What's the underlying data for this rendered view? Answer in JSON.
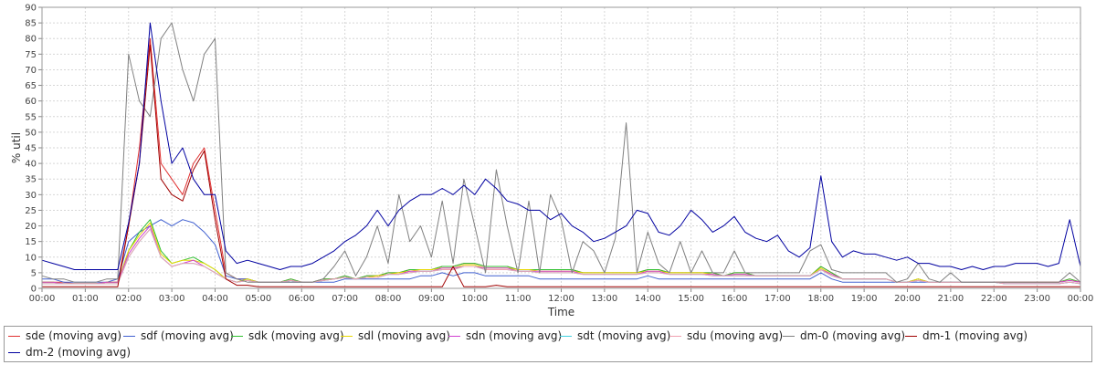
{
  "chart_data": {
    "type": "line",
    "xlabel": "Time",
    "ylabel": "% util",
    "ylim": [
      0,
      90
    ],
    "xlim": [
      "00:00",
      "24:00"
    ],
    "y_ticks": [
      0,
      5,
      10,
      15,
      20,
      25,
      30,
      35,
      40,
      45,
      50,
      55,
      60,
      65,
      70,
      75,
      80,
      85,
      90
    ],
    "x_ticks": [
      "00:00",
      "01:00",
      "02:00",
      "03:00",
      "04:00",
      "05:00",
      "06:00",
      "07:00",
      "08:00",
      "09:00",
      "10:00",
      "11:00",
      "12:00",
      "13:00",
      "14:00",
      "15:00",
      "16:00",
      "17:00",
      "18:00",
      "19:00",
      "20:00",
      "21:00",
      "22:00",
      "23:00",
      "00:00"
    ],
    "grid": true,
    "legend_position": "bottom",
    "x": [
      "00:00",
      "00:15",
      "00:30",
      "00:45",
      "01:00",
      "01:15",
      "01:30",
      "01:45",
      "02:00",
      "02:15",
      "02:30",
      "02:45",
      "03:00",
      "03:15",
      "03:30",
      "03:45",
      "04:00",
      "04:15",
      "04:30",
      "04:45",
      "05:00",
      "05:15",
      "05:30",
      "05:45",
      "06:00",
      "06:15",
      "06:30",
      "06:45",
      "07:00",
      "07:15",
      "07:30",
      "07:45",
      "08:00",
      "08:15",
      "08:30",
      "08:45",
      "09:00",
      "09:15",
      "09:30",
      "09:45",
      "10:00",
      "10:15",
      "10:30",
      "10:45",
      "11:00",
      "11:15",
      "11:30",
      "11:45",
      "12:00",
      "12:15",
      "12:30",
      "12:45",
      "13:00",
      "13:15",
      "13:30",
      "13:45",
      "14:00",
      "14:15",
      "14:30",
      "14:45",
      "15:00",
      "15:15",
      "15:30",
      "15:45",
      "16:00",
      "16:15",
      "16:30",
      "16:45",
      "17:00",
      "17:15",
      "17:30",
      "17:45",
      "18:00",
      "18:15",
      "18:30",
      "18:45",
      "19:00",
      "19:15",
      "19:30",
      "19:45",
      "20:00",
      "20:15",
      "20:30",
      "20:45",
      "21:00",
      "21:15",
      "21:30",
      "21:45",
      "22:00",
      "22:15",
      "22:30",
      "22:45",
      "23:00",
      "23:15",
      "23:30",
      "23:45",
      "24:00"
    ],
    "series": [
      {
        "name": "sde (moving avg)",
        "color": "#e03030",
        "values": [
          2,
          2,
          2,
          1.5,
          1.5,
          1.5,
          2,
          2,
          20,
          45,
          80,
          40,
          35,
          30,
          40,
          45,
          25,
          5,
          3,
          3,
          2,
          2,
          2,
          3,
          2,
          2,
          3,
          3,
          4,
          3,
          4,
          4,
          5,
          5,
          6,
          6,
          6,
          7,
          7,
          8,
          8,
          7,
          7,
          7,
          6,
          6,
          6,
          6,
          6,
          6,
          5,
          5,
          5,
          5,
          5,
          5,
          6,
          6,
          5,
          5,
          5,
          5,
          5,
          4,
          5,
          5,
          4,
          4,
          4,
          4,
          4,
          4,
          7,
          5,
          3,
          3,
          3,
          3,
          3,
          2,
          2,
          3,
          2,
          2,
          2,
          2,
          2,
          2,
          2,
          2,
          2,
          2,
          2,
          2,
          2,
          3,
          2
        ]
      },
      {
        "name": "sdf (moving avg)",
        "color": "#4060d0",
        "values": [
          3,
          3,
          2,
          2,
          2,
          2,
          2,
          3,
          15,
          18,
          20,
          22,
          20,
          22,
          21,
          18,
          14,
          4,
          3,
          3,
          2,
          2,
          2,
          2,
          2,
          2,
          2,
          2,
          3,
          3,
          3,
          3,
          3,
          3,
          3,
          4,
          4,
          5,
          4,
          5,
          5,
          4,
          4,
          4,
          4,
          4,
          3,
          3,
          3,
          3,
          3,
          3,
          3,
          3,
          3,
          3,
          4,
          3,
          3,
          3,
          3,
          3,
          3,
          3,
          3,
          3,
          3,
          3,
          3,
          3,
          3,
          3,
          5,
          3,
          2,
          2,
          2,
          2,
          2,
          2,
          2,
          2,
          2,
          2,
          2,
          2,
          2,
          2,
          2,
          1.5,
          1.5,
          1.5,
          1.5,
          1.5,
          1.5,
          2,
          1.5
        ]
      },
      {
        "name": "sdk (moving avg)",
        "color": "#30c030",
        "values": [
          2,
          2,
          1.5,
          1.5,
          1.5,
          1.5,
          2,
          2,
          12,
          18,
          22,
          12,
          8,
          9,
          10,
          8,
          6,
          3,
          2,
          3,
          2,
          2,
          2,
          3,
          2,
          2,
          3,
          3,
          4,
          3,
          4,
          4,
          5,
          5,
          6,
          6,
          6,
          7,
          7,
          8,
          8,
          7,
          7,
          7,
          6,
          6,
          6,
          6,
          6,
          6,
          5,
          5,
          5,
          5,
          5,
          5,
          6,
          6,
          5,
          5,
          5,
          5,
          5,
          4,
          5,
          5,
          4,
          4,
          4,
          4,
          4,
          4,
          7,
          5,
          3,
          3,
          3,
          3,
          3,
          2,
          2,
          3,
          2,
          2,
          2,
          2,
          2,
          2,
          2,
          2,
          2,
          2,
          2,
          2,
          2,
          3,
          2
        ]
      },
      {
        "name": "sdl (moving avg)",
        "color": "#e8d800",
        "values": [
          2,
          2,
          1.5,
          1.5,
          1.5,
          1.5,
          2,
          2,
          12,
          17,
          21,
          11,
          8,
          9,
          9,
          8,
          6,
          3,
          2,
          3,
          2,
          2,
          2,
          2.5,
          2,
          2,
          2.5,
          3,
          3.5,
          3,
          3.5,
          4,
          4.5,
          5,
          5.5,
          6,
          6,
          6.5,
          6.5,
          7.5,
          7.5,
          6.5,
          6.5,
          6.5,
          6,
          6,
          5.5,
          5.5,
          5.5,
          5.5,
          5,
          5,
          5,
          5,
          5,
          5,
          5.5,
          5.5,
          5,
          5,
          5,
          5,
          4.5,
          4,
          4.5,
          4.5,
          4,
          4,
          4,
          4,
          4,
          4,
          6.5,
          4.5,
          3,
          3,
          3,
          3,
          3,
          2,
          2,
          3,
          2,
          2,
          2,
          2,
          2,
          2,
          2,
          2,
          2,
          2,
          2,
          2,
          2,
          2.5,
          2
        ]
      },
      {
        "name": "sdn (moving avg)",
        "color": "#d040d0",
        "values": [
          2,
          2,
          1.5,
          1.5,
          1.5,
          1.5,
          2,
          2,
          11,
          16,
          20,
          10,
          7,
          8,
          9,
          7,
          5,
          3,
          2,
          2.5,
          2,
          2,
          2,
          2.5,
          2,
          2,
          2.5,
          3,
          3.5,
          3,
          3.5,
          3.5,
          4.5,
          4.5,
          5.5,
          5.5,
          5.5,
          6.5,
          6.5,
          7,
          7,
          6.5,
          6.5,
          6.5,
          5.5,
          5.5,
          5.5,
          5.5,
          5.5,
          5.5,
          4.5,
          4.5,
          4.5,
          4.5,
          4.5,
          4.5,
          5.5,
          5.5,
          4.5,
          4.5,
          4.5,
          4.5,
          4.5,
          4,
          4.5,
          4.5,
          4,
          4,
          4,
          4,
          4,
          4,
          6,
          4.5,
          3,
          3,
          3,
          3,
          3,
          2,
          2,
          2.5,
          2,
          2,
          2,
          2,
          2,
          2,
          2,
          2,
          2,
          2,
          2,
          2,
          2,
          2.5,
          2
        ]
      },
      {
        "name": "sdt (moving avg)",
        "color": "#40d0e0",
        "values": [
          1.5,
          1.5,
          1.5,
          1.5,
          1.5,
          1.5,
          1.5,
          1.5,
          10,
          15,
          19,
          10,
          7,
          8,
          8,
          7,
          5,
          3,
          2,
          2.5,
          2,
          2,
          2,
          2.5,
          2,
          2,
          2.5,
          3,
          3.5,
          3,
          3.5,
          3.5,
          4.5,
          4.5,
          5,
          5.5,
          5.5,
          6,
          6,
          7,
          7,
          6,
          6,
          6,
          5.5,
          5.5,
          5,
          5,
          5,
          5,
          4.5,
          4.5,
          4.5,
          4.5,
          4.5,
          4.5,
          5,
          5,
          4.5,
          4.5,
          4.5,
          4.5,
          4,
          4,
          4,
          4,
          4,
          4,
          4,
          4,
          4,
          4,
          6,
          4,
          3,
          3,
          3,
          3,
          3,
          2,
          2,
          2.5,
          2,
          2,
          2,
          2,
          2,
          2,
          2,
          1.5,
          1.5,
          1.5,
          1.5,
          1.5,
          1.5,
          2,
          1.5
        ]
      },
      {
        "name": "sdu (moving avg)",
        "color": "#f0a0b0",
        "values": [
          1.5,
          1.5,
          1.5,
          1.5,
          1.5,
          1.5,
          1.5,
          1.5,
          10,
          15,
          19,
          10,
          7,
          8,
          8,
          7,
          5,
          3,
          2,
          2.5,
          2,
          2,
          2,
          2.5,
          2,
          2,
          2.5,
          3,
          3.5,
          3,
          3.5,
          3.5,
          4.5,
          4.5,
          5,
          5.5,
          5.5,
          6,
          6,
          7,
          7,
          6,
          6,
          6,
          5.5,
          5.5,
          5,
          5,
          5,
          5,
          4.5,
          4.5,
          4.5,
          4.5,
          4.5,
          4.5,
          5,
          5,
          4.5,
          4.5,
          4.5,
          4.5,
          4,
          4,
          4,
          4,
          4,
          4,
          4,
          4,
          4,
          4,
          6,
          4,
          3,
          3,
          3,
          3,
          3,
          2,
          2,
          2.5,
          2,
          2,
          2,
          2,
          2,
          2,
          2,
          1.5,
          1.5,
          1.5,
          1.5,
          1.5,
          1.5,
          2,
          1.5
        ]
      },
      {
        "name": "dm-0 (moving avg)",
        "color": "#808080",
        "values": [
          4,
          3,
          3,
          2,
          2,
          2,
          3,
          3,
          75,
          60,
          55,
          80,
          85,
          70,
          60,
          75,
          80,
          5,
          3,
          2,
          2,
          2,
          2,
          2,
          2,
          2,
          3,
          7,
          12,
          4,
          10,
          20,
          8,
          30,
          15,
          20,
          10,
          28,
          8,
          35,
          20,
          5,
          38,
          20,
          5,
          28,
          5,
          30,
          22,
          5,
          15,
          12,
          5,
          16,
          53,
          5,
          18,
          8,
          5,
          15,
          5,
          12,
          5,
          5,
          12,
          5,
          5,
          5,
          5,
          5,
          5,
          12,
          14,
          6,
          5,
          5,
          5,
          5,
          5,
          2,
          3,
          8,
          3,
          2,
          5,
          2,
          2,
          2,
          2,
          2,
          2,
          2,
          2,
          2,
          2,
          5,
          2
        ]
      },
      {
        "name": "dm-1 (moving avg)",
        "color": "#a00000",
        "values": [
          0.5,
          0.5,
          0.5,
          0.5,
          0.5,
          0.5,
          0.5,
          0.5,
          20,
          40,
          78,
          35,
          30,
          28,
          38,
          44,
          22,
          3,
          1,
          1,
          0.5,
          0.5,
          0.5,
          0.5,
          0.5,
          0.5,
          0.5,
          0.5,
          0.5,
          0.5,
          0.5,
          0.5,
          0.5,
          0.5,
          0.5,
          0.5,
          0.5,
          0.5,
          7,
          0.5,
          0.5,
          0.5,
          1,
          0.5,
          0.5,
          0.5,
          0.5,
          0.5,
          0.5,
          0.5,
          0.5,
          0.5,
          0.5,
          0.5,
          0.5,
          0.5,
          0.5,
          0.5,
          0.5,
          0.5,
          0.5,
          0.5,
          0.5,
          0.5,
          0.5,
          0.5,
          0.5,
          0.5,
          0.5,
          0.5,
          0.5,
          0.5,
          0.5,
          0.5,
          0.5,
          0.5,
          0.5,
          0.5,
          0.5,
          0.5,
          0.5,
          0.5,
          0.5,
          0.5,
          0.5,
          0.5,
          0.5,
          0.5,
          0.5,
          0.5,
          0.5,
          0.5,
          0.5,
          0.5,
          0.5,
          0.5,
          0.5
        ]
      },
      {
        "name": "dm-2 (moving avg)",
        "color": "#0000a0",
        "values": [
          9,
          8,
          7,
          6,
          6,
          6,
          6,
          6,
          21,
          40,
          85,
          60,
          40,
          45,
          35,
          30,
          30,
          12,
          8,
          9,
          8,
          7,
          6,
          7,
          7,
          8,
          10,
          12,
          15,
          17,
          20,
          25,
          20,
          25,
          28,
          30,
          30,
          32,
          30,
          33,
          30,
          35,
          32,
          28,
          27,
          25,
          25,
          22,
          24,
          20,
          18,
          15,
          16,
          18,
          20,
          25,
          24,
          18,
          17,
          20,
          25,
          22,
          18,
          20,
          23,
          18,
          16,
          15,
          17,
          12,
          10,
          13,
          36,
          15,
          10,
          12,
          11,
          11,
          10,
          9,
          10,
          8,
          8,
          7,
          7,
          6,
          7,
          6,
          7,
          7,
          8,
          8,
          8,
          7,
          8,
          22,
          7
        ]
      }
    ]
  }
}
